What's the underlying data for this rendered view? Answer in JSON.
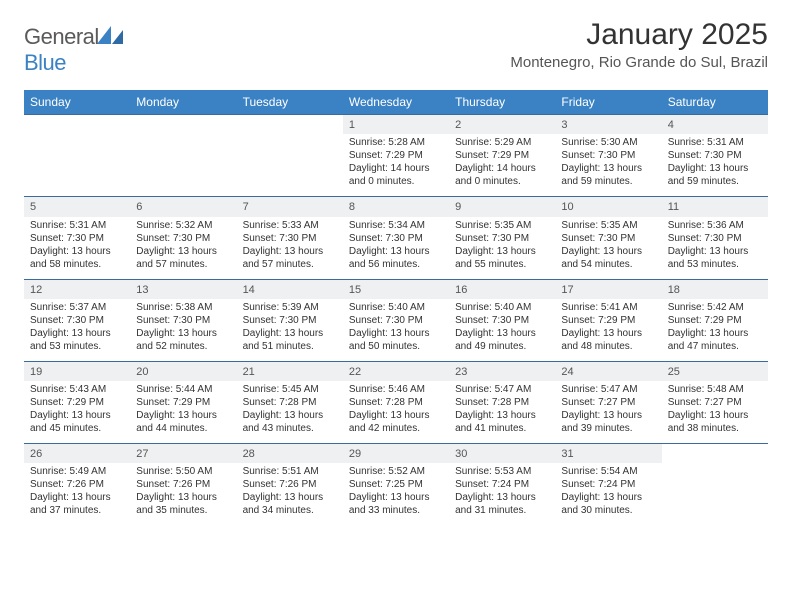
{
  "brand": {
    "name_part1": "General",
    "name_part2": "Blue"
  },
  "title": "January 2025",
  "location": "Montenegro, Rio Grande do Sul, Brazil",
  "colors": {
    "header_bg": "#3b82c4",
    "header_text": "#ffffff",
    "row_divider": "#3b6b9b",
    "daynum_bg": "#eef0f1",
    "body_text": "#333333",
    "logo_gray": "#5b5959",
    "logo_blue": "#3b82c4",
    "page_bg": "#ffffff"
  },
  "typography": {
    "title_fontsize": 30,
    "location_fontsize": 15,
    "dayhead_fontsize": 12,
    "daynum_fontsize": 11,
    "cell_fontsize": 10
  },
  "calendar": {
    "type": "table",
    "columns": [
      "Sunday",
      "Monday",
      "Tuesday",
      "Wednesday",
      "Thursday",
      "Friday",
      "Saturday"
    ],
    "weeks": [
      [
        null,
        null,
        null,
        {
          "day": "1",
          "sunrise": "Sunrise: 5:28 AM",
          "sunset": "Sunset: 7:29 PM",
          "daylight": "Daylight: 14 hours and 0 minutes."
        },
        {
          "day": "2",
          "sunrise": "Sunrise: 5:29 AM",
          "sunset": "Sunset: 7:29 PM",
          "daylight": "Daylight: 14 hours and 0 minutes."
        },
        {
          "day": "3",
          "sunrise": "Sunrise: 5:30 AM",
          "sunset": "Sunset: 7:30 PM",
          "daylight": "Daylight: 13 hours and 59 minutes."
        },
        {
          "day": "4",
          "sunrise": "Sunrise: 5:31 AM",
          "sunset": "Sunset: 7:30 PM",
          "daylight": "Daylight: 13 hours and 59 minutes."
        }
      ],
      [
        {
          "day": "5",
          "sunrise": "Sunrise: 5:31 AM",
          "sunset": "Sunset: 7:30 PM",
          "daylight": "Daylight: 13 hours and 58 minutes."
        },
        {
          "day": "6",
          "sunrise": "Sunrise: 5:32 AM",
          "sunset": "Sunset: 7:30 PM",
          "daylight": "Daylight: 13 hours and 57 minutes."
        },
        {
          "day": "7",
          "sunrise": "Sunrise: 5:33 AM",
          "sunset": "Sunset: 7:30 PM",
          "daylight": "Daylight: 13 hours and 57 minutes."
        },
        {
          "day": "8",
          "sunrise": "Sunrise: 5:34 AM",
          "sunset": "Sunset: 7:30 PM",
          "daylight": "Daylight: 13 hours and 56 minutes."
        },
        {
          "day": "9",
          "sunrise": "Sunrise: 5:35 AM",
          "sunset": "Sunset: 7:30 PM",
          "daylight": "Daylight: 13 hours and 55 minutes."
        },
        {
          "day": "10",
          "sunrise": "Sunrise: 5:35 AM",
          "sunset": "Sunset: 7:30 PM",
          "daylight": "Daylight: 13 hours and 54 minutes."
        },
        {
          "day": "11",
          "sunrise": "Sunrise: 5:36 AM",
          "sunset": "Sunset: 7:30 PM",
          "daylight": "Daylight: 13 hours and 53 minutes."
        }
      ],
      [
        {
          "day": "12",
          "sunrise": "Sunrise: 5:37 AM",
          "sunset": "Sunset: 7:30 PM",
          "daylight": "Daylight: 13 hours and 53 minutes."
        },
        {
          "day": "13",
          "sunrise": "Sunrise: 5:38 AM",
          "sunset": "Sunset: 7:30 PM",
          "daylight": "Daylight: 13 hours and 52 minutes."
        },
        {
          "day": "14",
          "sunrise": "Sunrise: 5:39 AM",
          "sunset": "Sunset: 7:30 PM",
          "daylight": "Daylight: 13 hours and 51 minutes."
        },
        {
          "day": "15",
          "sunrise": "Sunrise: 5:40 AM",
          "sunset": "Sunset: 7:30 PM",
          "daylight": "Daylight: 13 hours and 50 minutes."
        },
        {
          "day": "16",
          "sunrise": "Sunrise: 5:40 AM",
          "sunset": "Sunset: 7:30 PM",
          "daylight": "Daylight: 13 hours and 49 minutes."
        },
        {
          "day": "17",
          "sunrise": "Sunrise: 5:41 AM",
          "sunset": "Sunset: 7:29 PM",
          "daylight": "Daylight: 13 hours and 48 minutes."
        },
        {
          "day": "18",
          "sunrise": "Sunrise: 5:42 AM",
          "sunset": "Sunset: 7:29 PM",
          "daylight": "Daylight: 13 hours and 47 minutes."
        }
      ],
      [
        {
          "day": "19",
          "sunrise": "Sunrise: 5:43 AM",
          "sunset": "Sunset: 7:29 PM",
          "daylight": "Daylight: 13 hours and 45 minutes."
        },
        {
          "day": "20",
          "sunrise": "Sunrise: 5:44 AM",
          "sunset": "Sunset: 7:29 PM",
          "daylight": "Daylight: 13 hours and 44 minutes."
        },
        {
          "day": "21",
          "sunrise": "Sunrise: 5:45 AM",
          "sunset": "Sunset: 7:28 PM",
          "daylight": "Daylight: 13 hours and 43 minutes."
        },
        {
          "day": "22",
          "sunrise": "Sunrise: 5:46 AM",
          "sunset": "Sunset: 7:28 PM",
          "daylight": "Daylight: 13 hours and 42 minutes."
        },
        {
          "day": "23",
          "sunrise": "Sunrise: 5:47 AM",
          "sunset": "Sunset: 7:28 PM",
          "daylight": "Daylight: 13 hours and 41 minutes."
        },
        {
          "day": "24",
          "sunrise": "Sunrise: 5:47 AM",
          "sunset": "Sunset: 7:27 PM",
          "daylight": "Daylight: 13 hours and 39 minutes."
        },
        {
          "day": "25",
          "sunrise": "Sunrise: 5:48 AM",
          "sunset": "Sunset: 7:27 PM",
          "daylight": "Daylight: 13 hours and 38 minutes."
        }
      ],
      [
        {
          "day": "26",
          "sunrise": "Sunrise: 5:49 AM",
          "sunset": "Sunset: 7:26 PM",
          "daylight": "Daylight: 13 hours and 37 minutes."
        },
        {
          "day": "27",
          "sunrise": "Sunrise: 5:50 AM",
          "sunset": "Sunset: 7:26 PM",
          "daylight": "Daylight: 13 hours and 35 minutes."
        },
        {
          "day": "28",
          "sunrise": "Sunrise: 5:51 AM",
          "sunset": "Sunset: 7:26 PM",
          "daylight": "Daylight: 13 hours and 34 minutes."
        },
        {
          "day": "29",
          "sunrise": "Sunrise: 5:52 AM",
          "sunset": "Sunset: 7:25 PM",
          "daylight": "Daylight: 13 hours and 33 minutes."
        },
        {
          "day": "30",
          "sunrise": "Sunrise: 5:53 AM",
          "sunset": "Sunset: 7:24 PM",
          "daylight": "Daylight: 13 hours and 31 minutes."
        },
        {
          "day": "31",
          "sunrise": "Sunrise: 5:54 AM",
          "sunset": "Sunset: 7:24 PM",
          "daylight": "Daylight: 13 hours and 30 minutes."
        },
        null
      ]
    ]
  }
}
